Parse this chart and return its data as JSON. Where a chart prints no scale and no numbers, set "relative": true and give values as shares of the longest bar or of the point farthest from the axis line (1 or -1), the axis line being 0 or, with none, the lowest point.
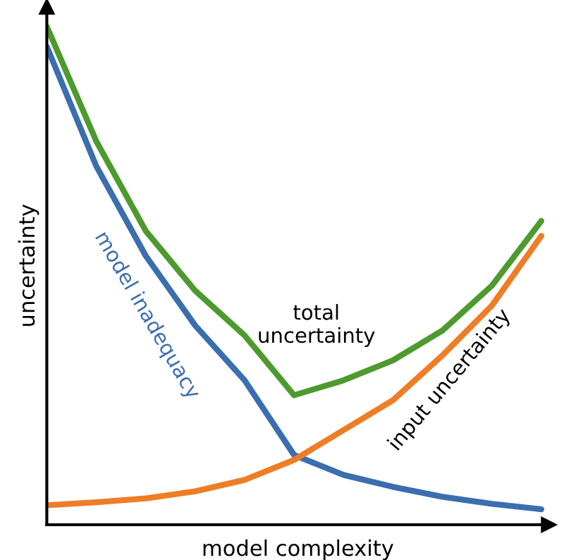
{
  "chart_data": {
    "type": "line",
    "xlabel": "model complexity",
    "ylabel": "uncertainty",
    "relative": true,
    "legend": false,
    "grid": false,
    "marker": "none",
    "line_style": "solid",
    "categories": [
      null,
      null,
      null,
      null,
      null,
      null,
      null,
      null,
      null,
      null,
      null
    ],
    "series": [
      {
        "name": "model inadequacy",
        "color": "#3a6eaf",
        "values": [
          0.96,
          0.72,
          0.54,
          0.4,
          0.29,
          0.14,
          0.1,
          0.076,
          0.056,
          0.042,
          0.031
        ]
      },
      {
        "name": "input uncertainty",
        "color": "#ee7d26",
        "values": [
          0.039,
          0.045,
          0.053,
          0.067,
          0.09,
          0.13,
          0.19,
          0.25,
          0.34,
          0.44,
          0.58
        ]
      },
      {
        "name": "total\nuncertainty",
        "color": "#4d9a2e",
        "values": [
          1.0,
          0.77,
          0.59,
          0.47,
          0.38,
          0.26,
          0.29,
          0.33,
          0.39,
          0.48,
          0.61
        ]
      }
    ]
  }
}
